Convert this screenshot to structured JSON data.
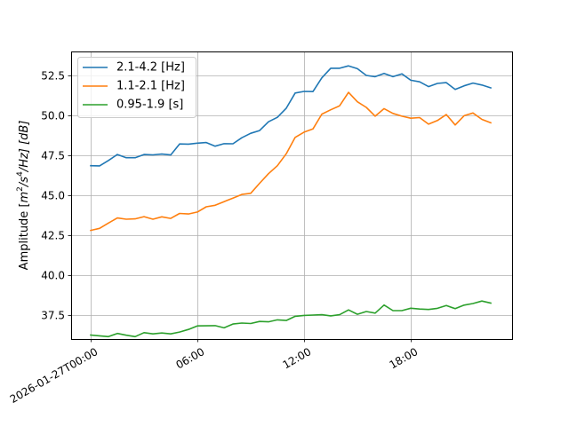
{
  "chart_data": {
    "type": "line",
    "title": "",
    "xlabel": "",
    "ylabel": "Amplitude [m^2/s^4/Hz] [dB]",
    "ylabel_parts": {
      "prefix": "Amplitude [",
      "m": "m",
      "two": "2",
      "s": "/s",
      "four": "4",
      "suffix": "/Hz] [dB]"
    },
    "x_ticks": [
      {
        "t": 0,
        "label": "2026-01-27T00:00"
      },
      {
        "t": 6,
        "label": "06:00"
      },
      {
        "t": 12,
        "label": "12:00"
      },
      {
        "t": 18,
        "label": "18:00"
      }
    ],
    "y_ticks": [
      {
        "v": 37.5,
        "label": "37.5"
      },
      {
        "v": 40.0,
        "label": "40.0"
      },
      {
        "v": 42.5,
        "label": "42.5"
      },
      {
        "v": 45.0,
        "label": "45.0"
      },
      {
        "v": 47.5,
        "label": "47.5"
      },
      {
        "v": 50.0,
        "label": "50.0"
      },
      {
        "v": 52.5,
        "label": "52.5"
      }
    ],
    "xlim": [
      -1.1,
      23.7
    ],
    "ylim": [
      36.0,
      54.0
    ],
    "grid": true,
    "legend_position": "upper-left",
    "x_hours": [
      0,
      0.5,
      1,
      1.5,
      2,
      2.5,
      3,
      3.5,
      4,
      4.5,
      5,
      5.5,
      6,
      6.5,
      7,
      7.5,
      8,
      8.5,
      9,
      9.5,
      10,
      10.5,
      11,
      11.5,
      12,
      12.5,
      13,
      13.5,
      14,
      14.5,
      15,
      15.5,
      16,
      16.5,
      17,
      17.5,
      18,
      18.5,
      19,
      19.5,
      20,
      20.5,
      21,
      21.5,
      22,
      22.5
    ],
    "series": [
      {
        "name": "2.1-4.2 [Hz]",
        "color": "#1f77b4",
        "values": [
          46.85,
          46.84,
          47.18,
          47.55,
          47.35,
          47.35,
          47.55,
          47.53,
          47.58,
          47.52,
          48.21,
          48.2,
          48.26,
          48.3,
          48.07,
          48.23,
          48.22,
          48.6,
          48.88,
          49.05,
          49.6,
          49.88,
          50.45,
          51.4,
          51.5,
          51.49,
          52.35,
          52.95,
          52.95,
          53.1,
          52.92,
          52.5,
          52.42,
          52.63,
          52.42,
          52.6,
          52.2,
          52.1,
          51.8,
          52.0,
          52.05,
          51.62,
          51.85,
          52.02,
          51.9,
          51.72
        ]
      },
      {
        "name": "1.1-2.1 [Hz]",
        "color": "#ff7f0e",
        "values": [
          42.8,
          42.93,
          43.26,
          43.58,
          43.5,
          43.52,
          43.66,
          43.5,
          43.65,
          43.55,
          43.86,
          43.83,
          43.95,
          44.28,
          44.37,
          44.6,
          44.82,
          45.05,
          45.12,
          45.75,
          46.35,
          46.85,
          47.6,
          48.62,
          48.95,
          49.15,
          50.08,
          50.35,
          50.6,
          51.44,
          50.85,
          50.5,
          49.95,
          50.42,
          50.12,
          49.95,
          49.82,
          49.86,
          49.45,
          49.68,
          50.05,
          49.4,
          49.98,
          50.15,
          49.75,
          49.54
        ]
      },
      {
        "name": "0.95-1.9 [s]",
        "color": "#2ca02c",
        "values": [
          36.25,
          36.2,
          36.15,
          36.35,
          36.24,
          36.15,
          36.4,
          36.32,
          36.38,
          36.32,
          36.44,
          36.6,
          36.82,
          36.83,
          36.84,
          36.7,
          36.94,
          37.0,
          36.97,
          37.1,
          37.08,
          37.2,
          37.16,
          37.42,
          37.48,
          37.5,
          37.52,
          37.45,
          37.52,
          37.82,
          37.55,
          37.72,
          37.62,
          38.13,
          37.78,
          37.78,
          37.93,
          37.88,
          37.85,
          37.92,
          38.1,
          37.9,
          38.12,
          38.22,
          38.38,
          38.25
        ]
      }
    ]
  }
}
